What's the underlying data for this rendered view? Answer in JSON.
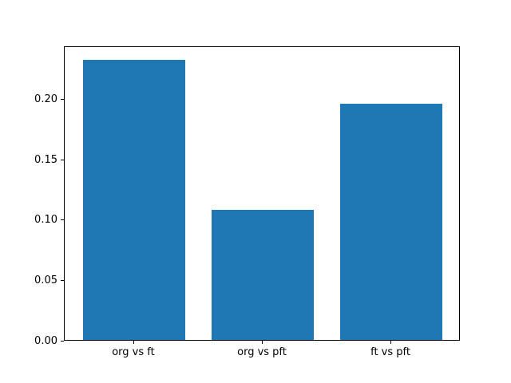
{
  "figure": {
    "background_color": "#ffffff",
    "plot_border_color": "#000000"
  },
  "chart_data": {
    "type": "bar",
    "categories": [
      "org vs ft",
      "org vs pft",
      "ft vs pft"
    ],
    "values": [
      0.232,
      0.108,
      0.196
    ],
    "title": "",
    "xlabel": "",
    "ylabel": "",
    "ylim": [
      0,
      0.244
    ],
    "xlim": [
      -0.54,
      2.54
    ],
    "bar_width": 0.8,
    "bar_color": "#1f77b4",
    "yticks": [
      0,
      0.05,
      0.1,
      0.15,
      0.2
    ],
    "ytick_labels": [
      "0.00",
      "0.05",
      "0.10",
      "0.15",
      "0.20"
    ],
    "grid": false,
    "legend_position": "none"
  }
}
